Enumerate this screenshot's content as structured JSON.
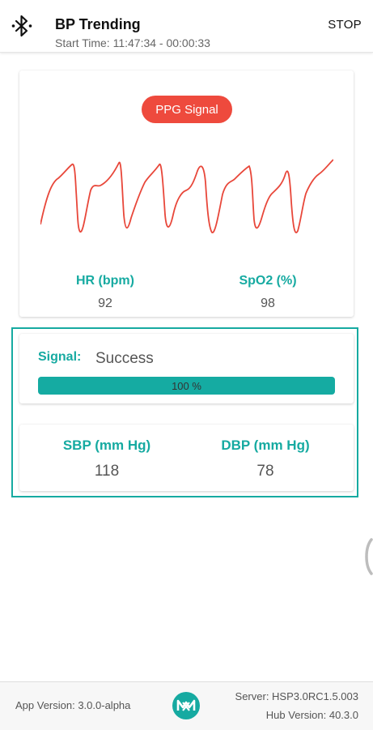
{
  "header": {
    "icon": "bluetooth-icon",
    "title": "BP Trending",
    "subtitle": "Start Time: 11:47:34 - 00:00:33",
    "stop_label": "STOP"
  },
  "ppg": {
    "pill_label": "PPG Signal",
    "signal_color": "#e8473a",
    "pill_color": "#ee4a3d",
    "hr_label": "HR (bpm)",
    "hr_value": "92",
    "spo2_label": "SpO2 (%)",
    "spo2_value": "98"
  },
  "signal": {
    "label": "Signal:",
    "status": "Success",
    "progress_percent": 100,
    "progress_text": "100 %"
  },
  "bp": {
    "sbp_label": "SBP (mm Hg)",
    "sbp_value": "118",
    "dbp_label": "DBP (mm Hg)",
    "dbp_value": "78"
  },
  "footer": {
    "app_version": "App Version: 3.0.0-alpha",
    "logo": "maxim-logo-icon",
    "server": "Server: HSP3.0RC1.5.003",
    "hub_version": "Hub Version: 40.3.0"
  },
  "colors": {
    "accent": "#16aaa1",
    "pill": "#ee4a3d"
  }
}
